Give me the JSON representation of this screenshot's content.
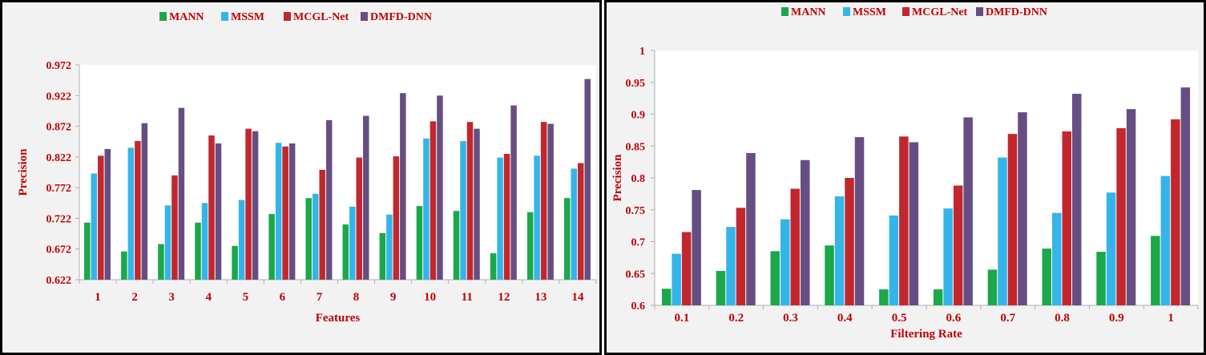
{
  "chart_data": [
    {
      "type": "bar",
      "title": "",
      "xlabel": "Features",
      "ylabel": "Precision",
      "ylim": [
        0.622,
        0.972
      ],
      "yticks": [
        "0.972",
        "0.922",
        "0.872",
        "0.822",
        "0.772",
        "0.722",
        "0.672",
        "0.622"
      ],
      "categories": [
        "1",
        "2",
        "3",
        "4",
        "5",
        "6",
        "7",
        "8",
        "9",
        "10",
        "11",
        "12",
        "13",
        "14"
      ],
      "legend_position": "top-center",
      "series": [
        {
          "name": "MANN",
          "color": "#1aa84a",
          "values": [
            0.715,
            0.668,
            0.68,
            0.715,
            0.677,
            0.729,
            0.755,
            0.712,
            0.698,
            0.742,
            0.734,
            0.665,
            0.732,
            0.755
          ]
        },
        {
          "name": "MSSM",
          "color": "#33b5ea",
          "values": [
            0.795,
            0.837,
            0.743,
            0.747,
            0.752,
            0.845,
            0.762,
            0.741,
            0.728,
            0.852,
            0.848,
            0.821,
            0.824,
            0.803
          ]
        },
        {
          "name": "MCGL-Net",
          "color": "#c1272d",
          "values": [
            0.824,
            0.848,
            0.792,
            0.857,
            0.868,
            0.839,
            0.801,
            0.821,
            0.823,
            0.88,
            0.879,
            0.827,
            0.879,
            0.812
          ]
        },
        {
          "name": "DMFD-DNN",
          "color": "#674e82",
          "values": [
            0.835,
            0.877,
            0.902,
            0.844,
            0.864,
            0.844,
            0.882,
            0.889,
            0.926,
            0.922,
            0.868,
            0.906,
            0.876,
            0.949
          ]
        }
      ]
    },
    {
      "type": "bar",
      "title": "",
      "xlabel": "Filtering  Rate",
      "ylabel": "Precision",
      "ylim": [
        0.6,
        1.0
      ],
      "yticks": [
        "1",
        "0.95",
        "0.9",
        "0.85",
        "0.8",
        "0.75",
        "0.7",
        "0.65",
        "0.6"
      ],
      "categories": [
        "0.1",
        "0.2",
        "0.3",
        "0.4",
        "0.5",
        "0.6",
        "0.7",
        "0.8",
        "0.9",
        "1"
      ],
      "legend_position": "top-center",
      "series": [
        {
          "name": "MANN",
          "color": "#1aa84a",
          "values": [
            0.626,
            0.654,
            0.685,
            0.694,
            0.625,
            0.625,
            0.656,
            0.689,
            0.684,
            0.709
          ]
        },
        {
          "name": "MSSM",
          "color": "#33b5ea",
          "values": [
            0.681,
            0.723,
            0.735,
            0.771,
            0.741,
            0.752,
            0.832,
            0.745,
            0.777,
            0.803
          ]
        },
        {
          "name": "MCGL-Net",
          "color": "#c1272d",
          "values": [
            0.715,
            0.753,
            0.783,
            0.8,
            0.865,
            0.788,
            0.869,
            0.873,
            0.878,
            0.892
          ]
        },
        {
          "name": "DMFD-DNN",
          "color": "#674e82",
          "values": [
            0.781,
            0.839,
            0.828,
            0.864,
            0.856,
            0.895,
            0.903,
            0.932,
            0.908,
            0.942
          ]
        }
      ]
    }
  ],
  "style": {
    "axis_color": "#b0b0b0",
    "label_color": "#c00000",
    "plot_background": "#ffffff",
    "panel_background": "#f2f2f2"
  }
}
